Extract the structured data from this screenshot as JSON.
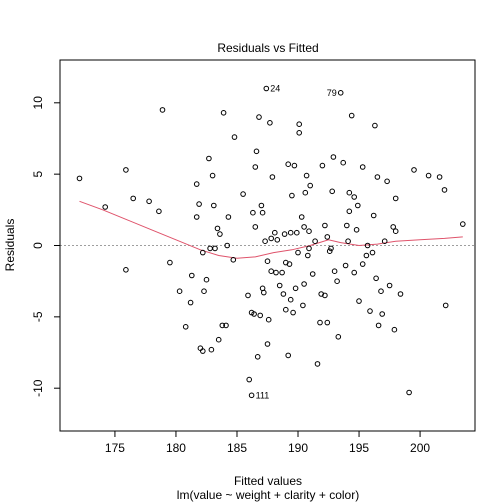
{
  "chart_data": {
    "type": "scatter",
    "title": "Residuals vs Fitted",
    "xlabel": "Fitted values",
    "subtitle": "lm(value ~ weight + clarity + color)",
    "ylabel": "Residuals",
    "xlim": [
      170.5,
      204.5
    ],
    "ylim": [
      -13,
      13
    ],
    "xticks": [
      175,
      180,
      185,
      190,
      195,
      200
    ],
    "yticks": [
      -10,
      -5,
      0,
      5,
      10
    ],
    "grid": false,
    "reference_line": {
      "y": 0,
      "style": "dotted",
      "color": "#9e9e9e"
    },
    "point_color": "#000000",
    "smooth_color": "#df536b",
    "points": [
      [
        172.1,
        4.7
      ],
      [
        174.2,
        2.7
      ],
      [
        175.9,
        5.3
      ],
      [
        175.9,
        -1.7
      ],
      [
        176.5,
        3.3
      ],
      [
        177.8,
        3.1
      ],
      [
        178.6,
        2.4
      ],
      [
        178.9,
        9.5
      ],
      [
        179.5,
        -1.2
      ],
      [
        180.3,
        -3.2
      ],
      [
        180.8,
        -5.7
      ],
      [
        181.2,
        -4.0
      ],
      [
        181.3,
        -2.1
      ],
      [
        181.7,
        4.3
      ],
      [
        181.7,
        2.0
      ],
      [
        181.9,
        2.9
      ],
      [
        182.0,
        -7.2
      ],
      [
        182.2,
        -7.4
      ],
      [
        182.2,
        -0.5
      ],
      [
        182.3,
        -3.2
      ],
      [
        182.5,
        -2.4
      ],
      [
        182.7,
        6.1
      ],
      [
        182.8,
        -0.2
      ],
      [
        182.9,
        -7.3
      ],
      [
        183.0,
        4.9
      ],
      [
        183.1,
        2.8
      ],
      [
        183.2,
        -0.2
      ],
      [
        183.4,
        1.2
      ],
      [
        183.5,
        -6.6
      ],
      [
        183.6,
        0.8
      ],
      [
        183.8,
        -5.6
      ],
      [
        183.9,
        9.3
      ],
      [
        184.1,
        -5.6
      ],
      [
        184.2,
        0.0
      ],
      [
        184.3,
        2.0
      ],
      [
        184.7,
        -1.0
      ],
      [
        184.8,
        7.6
      ],
      [
        185.5,
        3.6
      ],
      [
        185.9,
        -3.5
      ],
      [
        186.0,
        -9.4
      ],
      [
        186.2,
        -4.7
      ],
      [
        186.2,
        -10.5
      ],
      [
        186.3,
        2.3
      ],
      [
        186.4,
        -4.8
      ],
      [
        186.5,
        5.5
      ],
      [
        186.5,
        1.3
      ],
      [
        186.6,
        6.6
      ],
      [
        186.7,
        -7.8
      ],
      [
        186.8,
        9.0
      ],
      [
        186.9,
        -4.9
      ],
      [
        187.0,
        2.8
      ],
      [
        187.1,
        2.3
      ],
      [
        187.1,
        -3.0
      ],
      [
        187.2,
        -3.3
      ],
      [
        187.3,
        0.3
      ],
      [
        187.4,
        11.0
      ],
      [
        187.5,
        -6.9
      ],
      [
        187.5,
        -1.1
      ],
      [
        187.6,
        -5.2
      ],
      [
        187.7,
        8.6
      ],
      [
        187.8,
        0.5
      ],
      [
        187.8,
        -1.8
      ],
      [
        187.9,
        4.8
      ],
      [
        188.1,
        0.9
      ],
      [
        188.2,
        -1.9
      ],
      [
        188.3,
        0.4
      ],
      [
        188.5,
        -2.8
      ],
      [
        188.7,
        -1.9
      ],
      [
        188.8,
        -3.4
      ],
      [
        188.9,
        0.8
      ],
      [
        189.0,
        -1.2
      ],
      [
        189.0,
        -4.5
      ],
      [
        189.2,
        -7.7
      ],
      [
        189.2,
        5.7
      ],
      [
        189.3,
        -1.3
      ],
      [
        189.4,
        -3.8
      ],
      [
        189.4,
        0.9
      ],
      [
        189.5,
        3.5
      ],
      [
        189.6,
        -4.7
      ],
      [
        189.7,
        5.6
      ],
      [
        189.8,
        -3.0
      ],
      [
        189.9,
        0.9
      ],
      [
        190.0,
        -0.5
      ],
      [
        190.1,
        7.9
      ],
      [
        190.1,
        8.5
      ],
      [
        190.3,
        2.0
      ],
      [
        190.4,
        -4.2
      ],
      [
        190.5,
        -2.7
      ],
      [
        190.5,
        1.3
      ],
      [
        190.6,
        3.7
      ],
      [
        190.7,
        4.9
      ],
      [
        190.8,
        -0.7
      ],
      [
        190.9,
        1.0
      ],
      [
        190.9,
        -0.2
      ],
      [
        191.0,
        4.2
      ],
      [
        191.2,
        -2.0
      ],
      [
        191.4,
        0.3
      ],
      [
        191.6,
        -8.3
      ],
      [
        191.8,
        -5.4
      ],
      [
        191.9,
        -3.4
      ],
      [
        192.0,
        5.6
      ],
      [
        192.2,
        -3.5
      ],
      [
        192.2,
        1.4
      ],
      [
        192.4,
        0.6
      ],
      [
        192.4,
        -5.4
      ],
      [
        192.6,
        -0.4
      ],
      [
        192.7,
        -0.2
      ],
      [
        192.8,
        3.8
      ],
      [
        192.9,
        6.2
      ],
      [
        193.0,
        -1.8
      ],
      [
        193.2,
        -2.5
      ],
      [
        193.3,
        -6.4
      ],
      [
        193.5,
        10.7
      ],
      [
        193.7,
        5.8
      ],
      [
        193.9,
        -1.4
      ],
      [
        194.0,
        1.4
      ],
      [
        194.1,
        0.3
      ],
      [
        194.2,
        2.4
      ],
      [
        194.2,
        3.7
      ],
      [
        194.4,
        9.1
      ],
      [
        194.6,
        3.4
      ],
      [
        194.6,
        -1.9
      ],
      [
        194.8,
        1.1
      ],
      [
        194.9,
        2.8
      ],
      [
        195.0,
        -3.9
      ],
      [
        195.3,
        -1.3
      ],
      [
        195.3,
        5.5
      ],
      [
        195.6,
        -0.7
      ],
      [
        195.7,
        0.0
      ],
      [
        195.9,
        -4.6
      ],
      [
        196.1,
        -0.5
      ],
      [
        196.2,
        2.1
      ],
      [
        196.3,
        8.4
      ],
      [
        196.4,
        -2.3
      ],
      [
        196.5,
        4.8
      ],
      [
        196.6,
        -5.6
      ],
      [
        196.8,
        -3.2
      ],
      [
        196.9,
        -4.8
      ],
      [
        197.1,
        0.3
      ],
      [
        197.3,
        4.5
      ],
      [
        197.5,
        -2.8
      ],
      [
        197.8,
        1.3
      ],
      [
        197.9,
        -5.9
      ],
      [
        198.0,
        3.3
      ],
      [
        198.0,
        1.0
      ],
      [
        198.4,
        -3.4
      ],
      [
        199.1,
        -10.3
      ],
      [
        199.5,
        5.3
      ],
      [
        200.7,
        4.9
      ],
      [
        201.6,
        4.8
      ],
      [
        202.0,
        3.9
      ],
      [
        202.1,
        -4.2
      ],
      [
        203.5,
        1.5
      ]
    ],
    "labeled_points": [
      {
        "label": "24",
        "x": 187.4,
        "y": 11.0
      },
      {
        "label": "79",
        "x": 193.5,
        "y": 10.7
      },
      {
        "label": "111",
        "x": 186.2,
        "y": -10.5
      }
    ],
    "smooth": [
      [
        172.1,
        3.1
      ],
      [
        174.0,
        2.5
      ],
      [
        176.0,
        1.8
      ],
      [
        178.0,
        1.1
      ],
      [
        180.0,
        0.4
      ],
      [
        182.0,
        -0.3
      ],
      [
        183.5,
        -0.7
      ],
      [
        185.0,
        -0.9
      ],
      [
        186.5,
        -0.8
      ],
      [
        188.0,
        -0.5
      ],
      [
        189.5,
        -0.3
      ],
      [
        191.0,
        0.0
      ],
      [
        192.5,
        0.4
      ],
      [
        193.5,
        0.2
      ],
      [
        195.0,
        0.0
      ],
      [
        196.5,
        0.1
      ],
      [
        198.0,
        0.3
      ],
      [
        200.0,
        0.4
      ],
      [
        202.0,
        0.5
      ],
      [
        203.5,
        0.6
      ]
    ]
  }
}
